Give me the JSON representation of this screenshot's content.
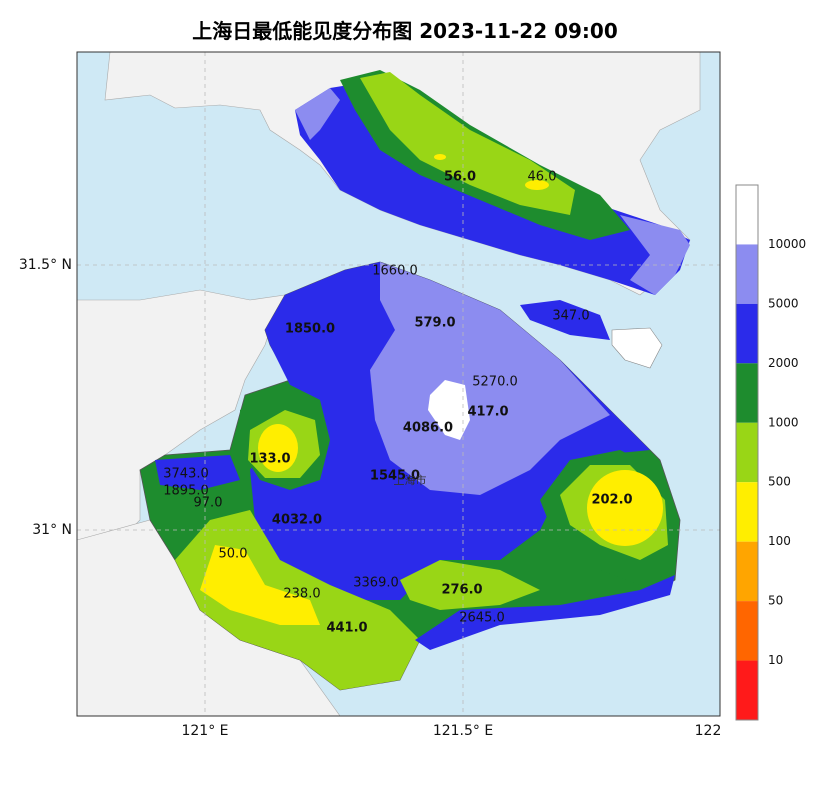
{
  "title": "上海日最低能见度分布图 2023-11-22 09:00",
  "axes": {
    "x_labels": [
      "121° E",
      "121.5° E",
      "122"
    ],
    "y_labels": [
      "31.5° N",
      "31° N"
    ]
  },
  "place": "上海市",
  "stations": [
    "56.0",
    "46.0",
    "1660.0",
    "579.0",
    "347.0",
    "1850.0",
    "5270.0",
    "417.0",
    "4086.0",
    "133.0",
    "3743.0",
    "1545.0",
    "1895.0",
    "202.0",
    "97.0",
    "4032.0",
    "50.0",
    "3369.0",
    "276.0",
    "238.0",
    "441.0",
    "2645.0"
  ],
  "colorbar": {
    "labels": [
      "10000",
      "5000",
      "2000",
      "1000",
      "500",
      "100",
      "50",
      "10"
    ]
  }
}
